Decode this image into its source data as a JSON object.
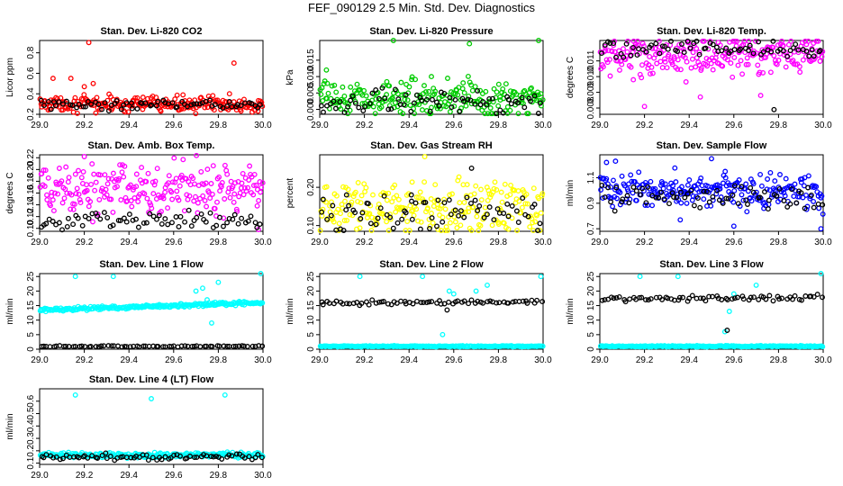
{
  "page_title": "FEF_090129  2.5 Min. Std. Dev. Diagnostics",
  "colors": {
    "black": "#000000",
    "red": "#ff0000",
    "green": "#00cc00",
    "magenta": "#ff00ff",
    "yellow": "#ffff00",
    "blue": "#0000ff",
    "cyan": "#00ffff"
  },
  "chart_data": [
    {
      "type": "scatter",
      "title": "Stan. Dev. Li-820 CO2",
      "ylabel": "Licor ppm",
      "xlim": [
        29.0,
        30.0
      ],
      "ylim": [
        0.2,
        0.92
      ],
      "xticks": [
        "29.0",
        "29.2",
        "29.4",
        "29.6",
        "29.8",
        "30.0"
      ],
      "yticks": [
        "0.2",
        "0.4",
        "0.6",
        "0.8"
      ],
      "series": [
        {
          "name": "primary",
          "color": "red",
          "base": 0.3,
          "spread": 0.035,
          "trend": 0,
          "outliers": [
            [
              29.06,
              0.55
            ],
            [
              29.14,
              0.55
            ],
            [
              29.2,
              0.47
            ],
            [
              29.22,
              0.9
            ],
            [
              29.24,
              0.5
            ],
            [
              29.87,
              0.7
            ],
            [
              29.85,
              0.4
            ]
          ]
        },
        {
          "name": "secondary",
          "color": "black",
          "base": 0.29,
          "spread": 0.025,
          "trend": 0,
          "outliers": []
        }
      ]
    },
    {
      "type": "scatter",
      "title": "Stan. Dev. Li-820 Pressure",
      "ylabel": "kPa",
      "xlim": [
        29.0,
        30.0
      ],
      "ylim": [
        -0.0015,
        0.021
      ],
      "xticks": [
        "29.0",
        "29.2",
        "29.4",
        "29.6",
        "29.8",
        "30.0"
      ],
      "yticks": [
        "0.000",
        "0.005",
        "0.010",
        "0.015"
      ],
      "series": [
        {
          "name": "primary",
          "color": "green",
          "base": 0.0035,
          "spread": 0.0025,
          "trend": 0,
          "outliers": [
            [
              29.33,
              0.021
            ],
            [
              29.67,
              0.02
            ],
            [
              29.98,
              0.021
            ],
            [
              29.03,
              0.012
            ],
            [
              29.5,
              0.01
            ]
          ]
        },
        {
          "name": "secondary",
          "color": "black",
          "base": 0.0022,
          "spread": 0.0018,
          "trend": 0,
          "outliers": []
        }
      ]
    },
    {
      "type": "scatter",
      "title": "Stan. Dev. Li-820 Temp.",
      "ylabel": "degrees C",
      "xlim": [
        29.0,
        30.0
      ],
      "ylim": [
        0.0076,
        0.0123
      ],
      "xticks": [
        "29.0",
        "29.2",
        "29.4",
        "29.6",
        "29.8",
        "30.0"
      ],
      "yticks": [
        "0.008",
        "0.009",
        "0.010",
        "0.011"
      ],
      "series": [
        {
          "name": "primary",
          "color": "magenta",
          "base": 0.0112,
          "spread": 0.0006,
          "trend": 0.0003,
          "outliers": [
            [
              29.2,
              0.0081
            ],
            [
              29.45,
              0.0087
            ],
            [
              29.72,
              0.0088
            ],
            [
              29.15,
              0.0098
            ]
          ]
        },
        {
          "name": "secondary",
          "color": "black",
          "base": 0.0118,
          "spread": 0.0003,
          "trend": 0,
          "outliers": [
            [
              29.78,
              0.0079
            ]
          ]
        }
      ]
    },
    {
      "type": "scatter",
      "title": "Stan. Dev. Amb. Box Temp.",
      "ylabel": "degrees C",
      "xlim": [
        29.0,
        30.0
      ],
      "ylim": [
        0.095,
        0.225
      ],
      "xticks": [
        "29.0",
        "29.2",
        "29.4",
        "29.6",
        "29.8",
        "30.0"
      ],
      "yticks": [
        "0.10",
        "0.12",
        "0.14",
        "0.16",
        "0.18",
        "0.20",
        "0.22"
      ],
      "series": [
        {
          "name": "primary",
          "color": "magenta",
          "base": 0.165,
          "spread": 0.022,
          "trend": 0,
          "outliers": [
            [
              29.2,
              0.222
            ],
            [
              29.98,
              0.098
            ]
          ]
        },
        {
          "name": "secondary",
          "color": "black",
          "base": 0.112,
          "spread": 0.007,
          "trend": 0,
          "outliers": []
        }
      ]
    },
    {
      "type": "scatter",
      "title": "Stan. Dev. Gas Stream RH",
      "ylabel": "percent",
      "xlim": [
        29.0,
        30.0
      ],
      "ylim": [
        0.085,
        0.285
      ],
      "xticks": [
        "29.0",
        "29.2",
        "29.4",
        "29.6",
        "29.8",
        "30.0"
      ],
      "yticks": [
        "0.10",
        "0.20"
      ],
      "series": [
        {
          "name": "primary",
          "color": "yellow",
          "base": 0.15,
          "spread": 0.035,
          "trend": 0,
          "outliers": [
            [
              29.47,
              0.28
            ],
            [
              29.53,
              0.09
            ]
          ]
        },
        {
          "name": "secondary",
          "color": "black",
          "base": 0.13,
          "spread": 0.025,
          "trend": 0,
          "outliers": [
            [
              29.68,
              0.25
            ],
            [
              29.41,
              0.18
            ],
            [
              29.12,
              0.18
            ]
          ]
        }
      ]
    },
    {
      "type": "scatter",
      "title": "Stan. Dev. Sample Flow",
      "ylabel": "ml/min",
      "xlim": [
        29.0,
        30.0
      ],
      "ylim": [
        0.68,
        1.28
      ],
      "xticks": [
        "29.0",
        "29.2",
        "29.4",
        "29.6",
        "29.8",
        "30.0"
      ],
      "yticks": [
        "0.7",
        "0.9",
        "1.1"
      ],
      "series": [
        {
          "name": "primary",
          "color": "blue",
          "base": 1.0,
          "spread": 0.07,
          "trend": 0,
          "outliers": [
            [
              29.03,
              1.22
            ],
            [
              29.07,
              1.23
            ],
            [
              29.5,
              1.25
            ],
            [
              29.36,
              0.77
            ],
            [
              29.6,
              0.72
            ],
            [
              29.99,
              0.7
            ]
          ]
        },
        {
          "name": "secondary",
          "color": "black",
          "base": 0.95,
          "spread": 0.05,
          "trend": 0,
          "outliers": []
        }
      ]
    },
    {
      "type": "scatter",
      "title": "Stan. Dev. Line 1 Flow",
      "ylabel": "ml/min",
      "xlim": [
        29.0,
        30.0
      ],
      "ylim": [
        0,
        26
      ],
      "xticks": [
        "29.0",
        "29.2",
        "29.4",
        "29.6",
        "29.8",
        "30.0"
      ],
      "yticks": [
        "0",
        "5",
        "10",
        "15",
        "20",
        "25"
      ],
      "series": [
        {
          "name": "primary",
          "color": "cyan",
          "base": 13.5,
          "spread": 0.3,
          "trend": 2.5,
          "outliers": [
            [
              29.16,
              25
            ],
            [
              29.33,
              25
            ],
            [
              29.7,
              20
            ],
            [
              29.73,
              21
            ],
            [
              29.75,
              17
            ],
            [
              29.77,
              9
            ],
            [
              29.8,
              23
            ],
            [
              29.99,
              26
            ]
          ]
        },
        {
          "name": "secondary",
          "color": "black",
          "base": 1.0,
          "spread": 0.1,
          "trend": 0,
          "outliers": []
        }
      ]
    },
    {
      "type": "scatter",
      "title": "Stan. Dev. Line 2 Flow",
      "ylabel": "ml/min",
      "xlim": [
        29.0,
        30.0
      ],
      "ylim": [
        0,
        26
      ],
      "xticks": [
        "29.0",
        "29.2",
        "29.4",
        "29.6",
        "29.8",
        "30.0"
      ],
      "yticks": [
        "0",
        "5",
        "10",
        "15",
        "20",
        "25"
      ],
      "series": [
        {
          "name": "primary",
          "color": "cyan",
          "base": 1.0,
          "spread": 0.1,
          "trend": 0,
          "outliers": [
            [
              29.55,
              5
            ],
            [
              29.58,
              20
            ],
            [
              29.75,
              22
            ],
            [
              29.7,
              20
            ],
            [
              29.99,
              25
            ],
            [
              29.18,
              25
            ],
            [
              29.46,
              25
            ],
            [
              29.6,
              19
            ]
          ]
        },
        {
          "name": "secondary",
          "color": "black",
          "base": 15.8,
          "spread": 0.4,
          "trend": 0.5,
          "outliers": [
            [
              29.57,
              13.5
            ]
          ]
        }
      ]
    },
    {
      "type": "scatter",
      "title": "Stan. Dev. Line 3 Flow",
      "ylabel": "ml/min",
      "xlim": [
        29.0,
        30.0
      ],
      "ylim": [
        0,
        26
      ],
      "xticks": [
        "29.0",
        "29.2",
        "29.4",
        "29.6",
        "29.8",
        "30.0"
      ],
      "yticks": [
        "0",
        "5",
        "10",
        "15",
        "20",
        "25"
      ],
      "series": [
        {
          "name": "primary",
          "color": "cyan",
          "base": 1.0,
          "spread": 0.1,
          "trend": 0,
          "outliers": [
            [
              29.56,
              6
            ],
            [
              29.58,
              13
            ],
            [
              29.6,
              19
            ],
            [
              29.7,
              22
            ],
            [
              29.99,
              26
            ],
            [
              29.18,
              25
            ],
            [
              29.35,
              25
            ]
          ]
        },
        {
          "name": "secondary",
          "color": "black",
          "base": 17.3,
          "spread": 0.4,
          "trend": 0.6,
          "outliers": [
            [
              29.57,
              6.5
            ]
          ]
        }
      ]
    },
    {
      "type": "scatter",
      "title": "Stan. Dev. Line 4 (LT) Flow",
      "ylabel": "ml/min",
      "xlim": [
        29.0,
        30.0
      ],
      "ylim": [
        0.09,
        0.7
      ],
      "xticks": [
        "29.0",
        "29.2",
        "29.4",
        "29.6",
        "29.8",
        "30.0"
      ],
      "yticks": [
        "0.1",
        "0.2",
        "0.3",
        "0.4",
        "0.5",
        "0.6"
      ],
      "series": [
        {
          "name": "primary",
          "color": "cyan",
          "base": 0.165,
          "spread": 0.01,
          "trend": 0,
          "outliers": [
            [
              29.16,
              0.65
            ],
            [
              29.5,
              0.62
            ],
            [
              29.83,
              0.65
            ]
          ]
        },
        {
          "name": "secondary",
          "color": "black",
          "base": 0.15,
          "spread": 0.012,
          "trend": 0,
          "outliers": []
        }
      ]
    }
  ]
}
